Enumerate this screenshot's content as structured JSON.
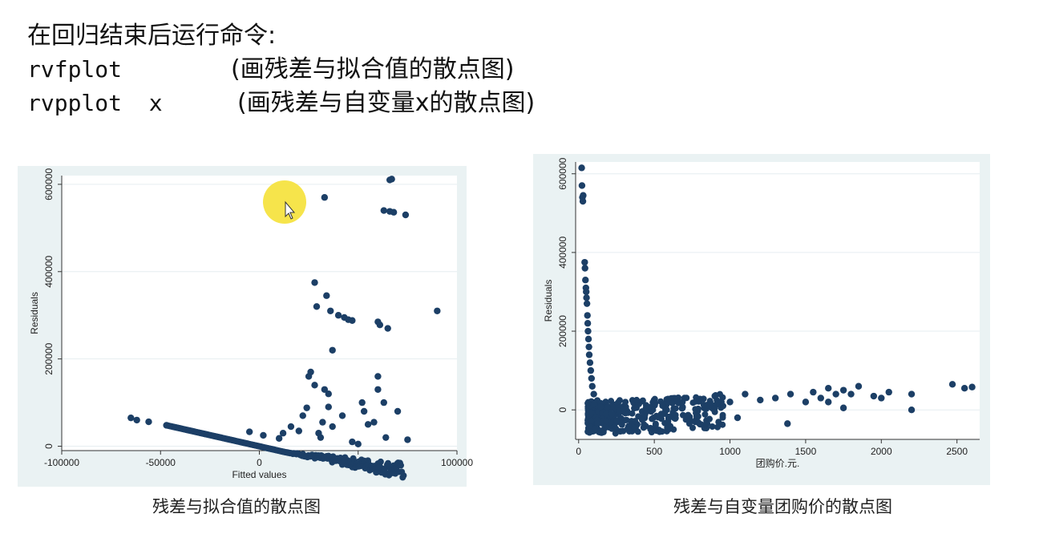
{
  "header": {
    "line1": "在回归结束后运行命令:",
    "cmd1": "rvfplot",
    "desc1": "(画残差与拟合值的散点图)",
    "cmd2": "rvpplot  x",
    "desc2": "(画残差与自变量x的散点图)"
  },
  "captions": {
    "left": "残差与拟合值的散点图",
    "right": "残差与自变量团购价的散点图"
  },
  "colors": {
    "marker": "#1c3f66",
    "panel_bg": "#eaf2f3",
    "plot_bg": "#ffffff",
    "gridline": "#e6eef0",
    "highlight": "#f5e23c"
  },
  "chart_data": [
    {
      "type": "scatter",
      "title": "",
      "xlabel": "Fitted values",
      "ylabel": "Residuals",
      "xlim": [
        -100000,
        100000
      ],
      "ylim": [
        -10000,
        620000
      ],
      "xticks": [
        -100000,
        -50000,
        0,
        50000,
        100000
      ],
      "yticks": [
        0,
        200000,
        400000,
        600000
      ],
      "grid": true,
      "points": [
        [
          -65000,
          65000
        ],
        [
          -62000,
          60000
        ],
        [
          -56000,
          56000
        ],
        [
          -47000,
          48000
        ],
        [
          -5000,
          33000
        ],
        [
          2000,
          25000
        ],
        [
          10000,
          18000
        ],
        [
          12000,
          30000
        ],
        [
          16000,
          45000
        ],
        [
          20000,
          35000
        ],
        [
          22000,
          70000
        ],
        [
          24000,
          88000
        ],
        [
          25000,
          160000
        ],
        [
          26000,
          170000
        ],
        [
          28000,
          140000
        ],
        [
          28000,
          375000
        ],
        [
          29000,
          320000
        ],
        [
          30000,
          30000
        ],
        [
          31000,
          20000
        ],
        [
          32000,
          55000
        ],
        [
          33000,
          130000
        ],
        [
          33000,
          570000
        ],
        [
          34000,
          345000
        ],
        [
          35000,
          120000
        ],
        [
          35000,
          90000
        ],
        [
          36000,
          310000
        ],
        [
          37000,
          220000
        ],
        [
          37000,
          45000
        ],
        [
          40000,
          300000
        ],
        [
          42000,
          70000
        ],
        [
          43000,
          295000
        ],
        [
          45000,
          290000
        ],
        [
          47000,
          288000
        ],
        [
          47000,
          10000
        ],
        [
          50000,
          5000
        ],
        [
          52000,
          100000
        ],
        [
          53000,
          80000
        ],
        [
          55000,
          50000
        ],
        [
          58000,
          55000
        ],
        [
          60000,
          160000
        ],
        [
          60000,
          130000
        ],
        [
          60000,
          285000
        ],
        [
          61000,
          278000
        ],
        [
          63000,
          100000
        ],
        [
          63000,
          540000
        ],
        [
          64000,
          20000
        ],
        [
          65000,
          270000
        ],
        [
          66000,
          610000
        ],
        [
          67000,
          612000
        ],
        [
          66000,
          538000
        ],
        [
          68000,
          536000
        ],
        [
          70000,
          80000
        ],
        [
          74000,
          530000
        ],
        [
          75000,
          15000
        ],
        [
          90000,
          310000
        ]
      ],
      "lower_band": {
        "x_from": -47000,
        "x_to": 73000,
        "y_at_from": 48000,
        "y_at_to": -75000
      }
    },
    {
      "type": "scatter",
      "title": "",
      "xlabel": "团购价.元.",
      "ylabel": "Residuals",
      "xlim": [
        -20,
        2650
      ],
      "ylim": [
        -75000,
        630000
      ],
      "xticks": [
        0,
        500,
        1000,
        1500,
        2000,
        2500
      ],
      "yticks": [
        0,
        200000,
        400000,
        600000
      ],
      "grid": true,
      "points": [
        [
          20,
          615000
        ],
        [
          22,
          570000
        ],
        [
          25,
          540000
        ],
        [
          28,
          530000
        ],
        [
          30,
          545000
        ],
        [
          40,
          375000
        ],
        [
          42,
          360000
        ],
        [
          45,
          330000
        ],
        [
          48,
          310000
        ],
        [
          50,
          300000
        ],
        [
          52,
          285000
        ],
        [
          55,
          270000
        ],
        [
          58,
          240000
        ],
        [
          60,
          220000
        ],
        [
          62,
          200000
        ],
        [
          65,
          180000
        ],
        [
          68,
          160000
        ],
        [
          70,
          140000
        ],
        [
          75,
          120000
        ],
        [
          80,
          100000
        ],
        [
          85,
          80000
        ],
        [
          90,
          60000
        ],
        [
          100,
          40000
        ],
        [
          700,
          30000
        ],
        [
          800,
          25000
        ],
        [
          900,
          35000
        ],
        [
          1000,
          20000
        ],
        [
          1100,
          40000
        ],
        [
          1200,
          25000
        ],
        [
          1300,
          30000
        ],
        [
          1400,
          40000
        ],
        [
          1500,
          20000
        ],
        [
          1550,
          45000
        ],
        [
          1600,
          30000
        ],
        [
          1650,
          55000
        ],
        [
          1700,
          40000
        ],
        [
          1750,
          50000
        ],
        [
          1800,
          40000
        ],
        [
          1850,
          60000
        ],
        [
          1950,
          35000
        ],
        [
          2000,
          30000
        ],
        [
          2050,
          45000
        ],
        [
          2200,
          40000
        ],
        [
          2200,
          0
        ],
        [
          2470,
          65000
        ],
        [
          2550,
          55000
        ],
        [
          2600,
          58000
        ],
        [
          1750,
          5000
        ],
        [
          1380,
          -35000
        ],
        [
          1650,
          20000
        ],
        [
          1050,
          -20000
        ]
      ]
    }
  ]
}
